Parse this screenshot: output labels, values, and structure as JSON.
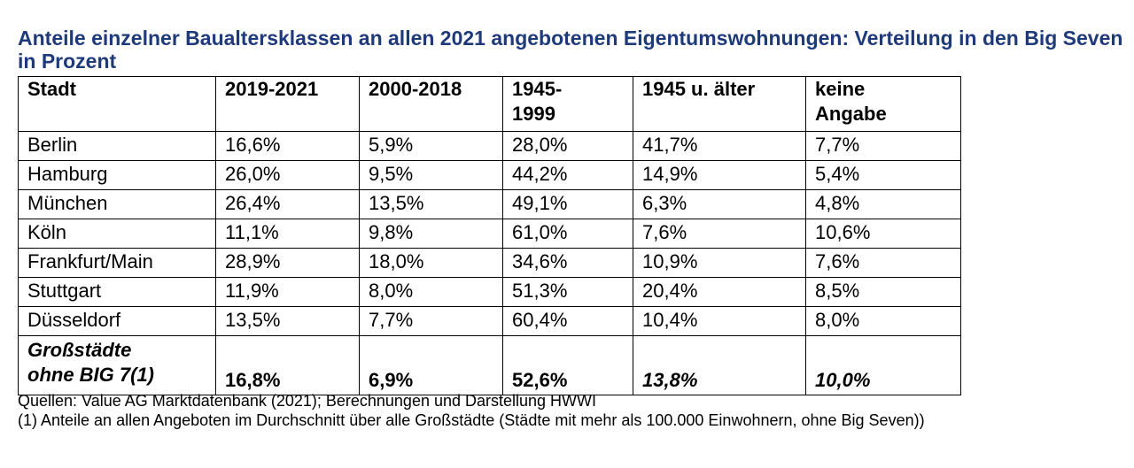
{
  "title": "Anteile einzelner Baualtersklassen an allen 2021 angebotenen Eigentumswohnungen: Verteilung in den Big Seven in Prozent",
  "table": {
    "headers": [
      "Stadt",
      "2019-2021",
      "2000-2018",
      "1945-\n1999",
      "1945 u. älter",
      "keine\nAngabe"
    ],
    "rows": [
      [
        "Berlin",
        "16,6%",
        "5,9%",
        "28,0%",
        "41,7%",
        "7,7%"
      ],
      [
        "Hamburg",
        "26,0%",
        "9,5%",
        "44,2%",
        "14,9%",
        "5,4%"
      ],
      [
        "München",
        "26,4%",
        "13,5%",
        "49,1%",
        "6,3%",
        "4,8%"
      ],
      [
        "Köln",
        "11,1%",
        "9,8%",
        "61,0%",
        "7,6%",
        "10,6%"
      ],
      [
        "Frankfurt/Main",
        "28,9%",
        "18,0%",
        "34,6%",
        "10,9%",
        "7,6%"
      ],
      [
        "Stuttgart",
        "11,9%",
        "8,0%",
        "51,3%",
        "20,4%",
        "8,5%"
      ],
      [
        "Düsseldorf",
        "13,5%",
        "7,7%",
        "60,4%",
        "10,4%",
        "8,0%"
      ]
    ],
    "summary": [
      "Großstädte\nohne BIG 7(1)",
      "16,8%",
      "6,9%",
      "52,6%",
      "13,8%",
      "10,0%"
    ]
  },
  "notes": {
    "source": "Quellen: Value AG Marktdatenbank (2021); Berechnungen und Darstellung HWWI",
    "footnote": "(1) Anteile an allen Angeboten im Durchschnitt über alle Großstädte (Städte mit mehr als 100.000 Einwohnern, ohne Big Seven))"
  }
}
